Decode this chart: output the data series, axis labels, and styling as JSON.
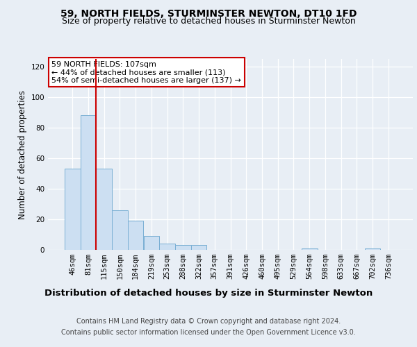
{
  "title": "59, NORTH FIELDS, STURMINSTER NEWTON, DT10 1FD",
  "subtitle": "Size of property relative to detached houses in Sturminster Newton",
  "xlabel": "Distribution of detached houses by size in Sturminster Newton",
  "ylabel": "Number of detached properties",
  "footer1": "Contains HM Land Registry data © Crown copyright and database right 2024.",
  "footer2": "Contains public sector information licensed under the Open Government Licence v3.0.",
  "bin_labels": [
    "46sqm",
    "81sqm",
    "115sqm",
    "150sqm",
    "184sqm",
    "219sqm",
    "253sqm",
    "288sqm",
    "322sqm",
    "357sqm",
    "391sqm",
    "426sqm",
    "460sqm",
    "495sqm",
    "529sqm",
    "564sqm",
    "598sqm",
    "633sqm",
    "667sqm",
    "702sqm",
    "736sqm"
  ],
  "bar_heights": [
    53,
    88,
    53,
    26,
    19,
    9,
    4,
    3,
    3,
    0,
    0,
    0,
    0,
    0,
    0,
    1,
    0,
    0,
    0,
    1,
    0
  ],
  "bar_color": "#ccdff2",
  "bar_edge_color": "#7aafd4",
  "red_line_x": 1.5,
  "annotation_text": "59 NORTH FIELDS: 107sqm\n← 44% of detached houses are smaller (113)\n54% of semi-detached houses are larger (137) →",
  "annotation_box_color": "#ffffff",
  "annotation_box_edge": "#cc0000",
  "ylim": [
    0,
    125
  ],
  "yticks": [
    0,
    20,
    40,
    60,
    80,
    100,
    120
  ],
  "background_color": "#e8eef5",
  "plot_bg_color": "#e8eef5",
  "grid_color": "#ffffff",
  "title_fontsize": 10,
  "subtitle_fontsize": 9,
  "xlabel_fontsize": 9.5,
  "ylabel_fontsize": 8.5,
  "tick_fontsize": 7.5,
  "footer_fontsize": 7
}
